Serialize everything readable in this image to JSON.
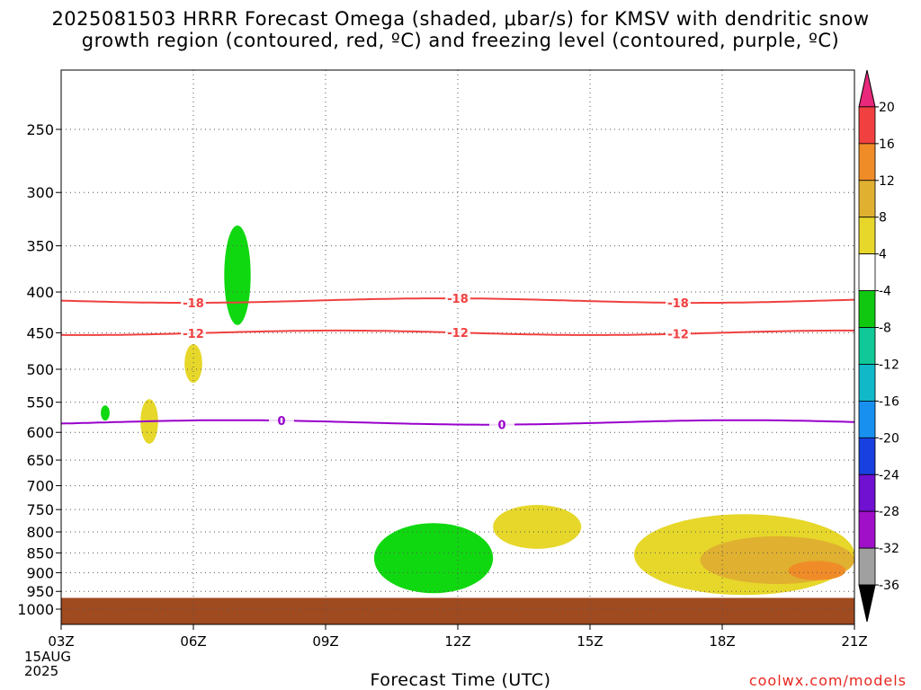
{
  "title": {
    "line1": "2025081503 HRRR Forecast Omega (shaded, μbar/s) for KMSV with dendritic snow",
    "line2": "growth region (contoured, red, ºC) and freezing level (contoured, purple, ºC)"
  },
  "credit": "coolwx.com/models",
  "xaxis_title": "Forecast Time (UTC)",
  "x_start_date": [
    "15AUG",
    "2025"
  ],
  "chart_data": {
    "type": "contour",
    "xlabel": "Forecast Time (UTC)",
    "x_ticks": [
      "03Z",
      "06Z",
      "09Z",
      "12Z",
      "15Z",
      "18Z",
      "21Z"
    ],
    "x_range_hours": [
      3,
      21
    ],
    "y_ticks": [
      250,
      300,
      350,
      400,
      450,
      500,
      550,
      600,
      650,
      700,
      750,
      800,
      850,
      900,
      950,
      1000
    ],
    "y_axis": "pressure (hPa), log scale, inverted",
    "grid": true,
    "contours": [
      {
        "name": "-18",
        "color": "#f04040",
        "pressure_hPa": 410,
        "labels_at_hours": [
          6,
          12,
          17
        ]
      },
      {
        "name": "-12",
        "color": "#f04040",
        "pressure_hPa": 450,
        "labels_at_hours": [
          6,
          12,
          17
        ]
      },
      {
        "name": "0",
        "color": "#9900cc",
        "pressure_hPa": 583,
        "labels_at_hours": [
          8,
          13
        ]
      }
    ],
    "shaded_regions": [
      {
        "band": "-8 to -4",
        "color": "#10d810",
        "time_hours": [
          6.7,
          7.3
        ],
        "pressure_hPa": [
          330,
          440
        ]
      },
      {
        "band": "-8 to -4",
        "color": "#10d810",
        "time_hours": [
          3.9,
          4.1
        ],
        "pressure_hPa": [
          555,
          580
        ]
      },
      {
        "band": "-8 to -4",
        "color": "#10d810",
        "time_hours": [
          10.1,
          12.8
        ],
        "pressure_hPa": [
          780,
          955
        ]
      },
      {
        "band": "4 to 8",
        "color": "#e6d72a",
        "time_hours": [
          5.8,
          6.2
        ],
        "pressure_hPa": [
          465,
          520
        ]
      },
      {
        "band": "4 to 8",
        "color": "#e6d72a",
        "time_hours": [
          4.8,
          5.2
        ],
        "pressure_hPa": [
          545,
          620
        ]
      },
      {
        "band": "4 to 8",
        "color": "#e6d72a",
        "time_hours": [
          12.8,
          14.8
        ],
        "pressure_hPa": [
          740,
          840
        ]
      },
      {
        "band": "4 to 8",
        "color": "#e6d72a",
        "time_hours": [
          16.0,
          21.0
        ],
        "pressure_hPa": [
          760,
          960
        ]
      },
      {
        "band": "8 to 12",
        "color": "#e0b030",
        "time_hours": [
          17.5,
          21.0
        ],
        "pressure_hPa": [
          810,
          930
        ]
      },
      {
        "band": "12 to 16",
        "color": "#f08c28",
        "time_hours": [
          19.5,
          20.8
        ],
        "pressure_hPa": [
          870,
          920
        ]
      }
    ],
    "terrain": {
      "color": "#a04a20",
      "pressure_hPa": 968
    }
  },
  "colorbar": {
    "labels": [
      "20",
      "16",
      "12",
      "8",
      "4",
      "-4",
      "-8",
      "-12",
      "-16",
      "-20",
      "-24",
      "-28",
      "-32",
      "-36"
    ],
    "colors": [
      "#e8287a",
      "#f04040",
      "#f08c28",
      "#e0b030",
      "#e6d72a",
      "#ffffff",
      "#10c810",
      "#10c898",
      "#10b8c8",
      "#1890f0",
      "#1840e0",
      "#7010d0",
      "#a010c8",
      "#a0a0a0",
      "#000000"
    ]
  }
}
